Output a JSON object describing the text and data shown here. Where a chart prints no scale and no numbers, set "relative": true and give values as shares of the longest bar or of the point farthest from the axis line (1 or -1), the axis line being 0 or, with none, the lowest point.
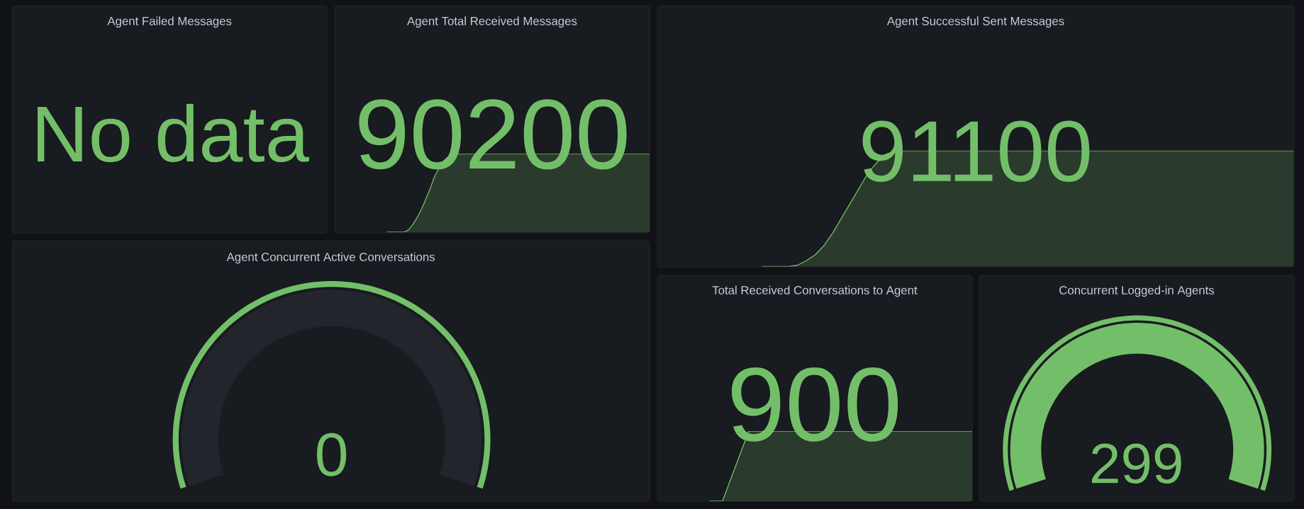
{
  "chart_data": [
    {
      "type": "other",
      "title": "Agent Failed Messages",
      "annotations": [
        "No data"
      ]
    },
    {
      "type": "area",
      "title": "Agent Total Received Messages",
      "relative": true,
      "categories": [
        null,
        null,
        null,
        null,
        null,
        null,
        null,
        null,
        null,
        null,
        null,
        null,
        null,
        null,
        null,
        null,
        null,
        null,
        null,
        null,
        null,
        null,
        null,
        null,
        null,
        null,
        null,
        null,
        null,
        null,
        null,
        null,
        null,
        null,
        null,
        null,
        null,
        null,
        null,
        null,
        null,
        null,
        null,
        null,
        null,
        null,
        null,
        null,
        null,
        null,
        null,
        null,
        null,
        null,
        null,
        null,
        null,
        null,
        null,
        null,
        null
      ],
      "values": [
        0,
        0,
        0,
        0,
        0,
        0.03,
        0.1,
        0.19,
        0.3,
        0.43,
        0.57,
        0.72,
        0.82,
        0.91,
        0.96,
        0.99,
        1,
        1,
        1,
        1,
        1,
        1,
        1,
        1,
        1,
        1,
        1,
        1,
        1,
        1,
        1,
        1,
        1,
        1,
        1,
        1,
        1,
        1,
        1,
        1,
        1,
        1,
        1,
        1,
        1,
        1,
        1,
        1,
        1,
        1,
        1,
        1,
        1,
        1,
        1,
        1,
        1,
        1,
        1,
        1,
        1
      ],
      "color": "#73bf69",
      "annotations": [
        "90200"
      ]
    },
    {
      "type": "area",
      "title": "Agent Successful Sent Messages",
      "relative": true,
      "categories": [
        null,
        null,
        null,
        null,
        null,
        null,
        null,
        null,
        null,
        null,
        null,
        null,
        null,
        null,
        null,
        null,
        null,
        null,
        null,
        null,
        null,
        null,
        null,
        null,
        null,
        null,
        null,
        null,
        null,
        null,
        null,
        null,
        null,
        null,
        null,
        null,
        null,
        null,
        null,
        null,
        null,
        null,
        null,
        null,
        null,
        null,
        null,
        null,
        null,
        null,
        null,
        null,
        null,
        null,
        null,
        null,
        null,
        null,
        null,
        null,
        null
      ],
      "values": [
        0,
        0,
        0,
        0,
        0.01,
        0.05,
        0.1,
        0.18,
        0.29,
        0.42,
        0.55,
        0.68,
        0.81,
        0.9,
        0.97,
        0.99,
        1,
        1,
        1,
        1,
        1,
        1,
        1,
        1,
        1,
        1,
        1,
        1,
        1,
        1,
        1,
        1,
        1,
        1,
        1,
        1,
        1,
        1,
        1,
        1,
        1,
        1,
        1,
        1,
        1,
        1,
        1,
        1,
        1,
        1,
        1,
        1,
        1,
        1,
        1,
        1,
        1,
        1,
        1,
        1,
        1
      ],
      "color": "#73bf69",
      "annotations": [
        "91100"
      ]
    },
    {
      "type": "pie",
      "title": "Agent Concurrent Active Conversations",
      "categories": [
        null,
        null
      ],
      "values": [
        0,
        100
      ],
      "colors": [
        "#73bf69",
        "#22252b"
      ],
      "annotations": [
        "0"
      ]
    },
    {
      "type": "area",
      "title": "Total Received Conversations to Agent",
      "relative": true,
      "categories": [
        null,
        null,
        null,
        null,
        null,
        null,
        null,
        null,
        null,
        null,
        null,
        null,
        null,
        null,
        null,
        null,
        null,
        null,
        null,
        null,
        null
      ],
      "values": [
        0,
        0,
        0.5,
        1,
        1,
        1,
        1,
        1,
        1,
        1,
        1,
        1,
        1,
        1,
        1,
        1,
        1,
        1,
        1,
        1,
        1
      ],
      "color": "#73bf69",
      "annotations": [
        "900"
      ]
    },
    {
      "type": "pie",
      "title": "Concurrent Logged-in Agents",
      "categories": [
        null,
        null
      ],
      "values": [
        100,
        0
      ],
      "colors": [
        "#73bf69",
        "#22252b"
      ],
      "annotations": [
        "299"
      ]
    }
  ]
}
